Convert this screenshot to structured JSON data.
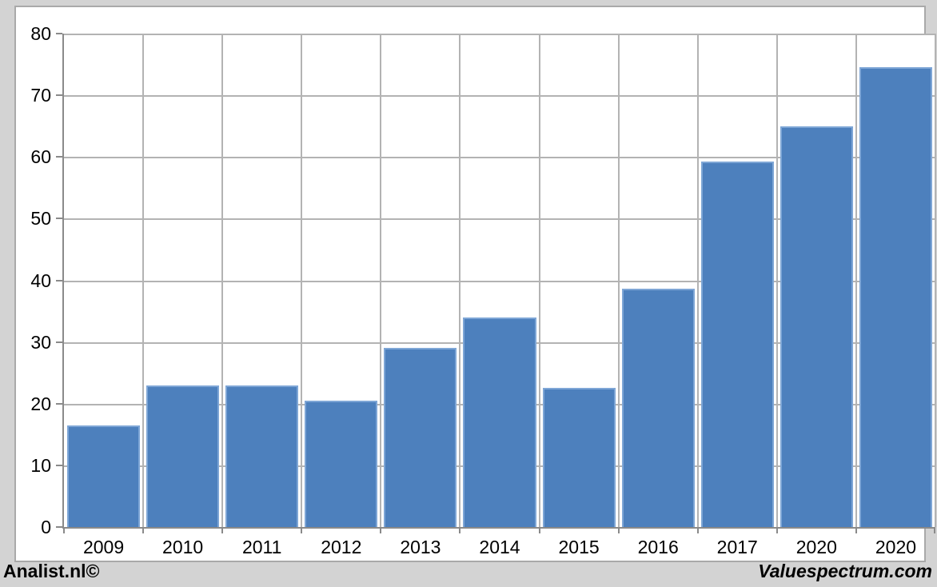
{
  "chart_data": {
    "type": "bar",
    "title": "",
    "xlabel": "",
    "ylabel": "",
    "categories": [
      "2009",
      "2010",
      "2011",
      "2012",
      "2013",
      "2014",
      "2015",
      "2016",
      "2017",
      "2020",
      "2020"
    ],
    "values": [
      16.5,
      23.0,
      22.9,
      20.5,
      29.0,
      34.0,
      22.6,
      38.7,
      59.2,
      65.0,
      74.6
    ],
    "ylim": [
      0,
      80
    ],
    "y_step": 10,
    "y_tick_labels": [
      "0",
      "10",
      "20",
      "30",
      "40",
      "50",
      "60",
      "70",
      "80"
    ],
    "grid": true,
    "legend": "none",
    "colors": {
      "bar_fill": "#4d80bd",
      "bar_border": "#7ea6d6",
      "gridline": "#b3b3b3",
      "axis": "#8a8a8a",
      "plot_background": "#ffffff",
      "page_background": "#d3d3d3",
      "tick_label": "#000000"
    }
  },
  "footer": {
    "left_label": "Analist.nl©",
    "right_label": "Valuespectrum.com"
  }
}
